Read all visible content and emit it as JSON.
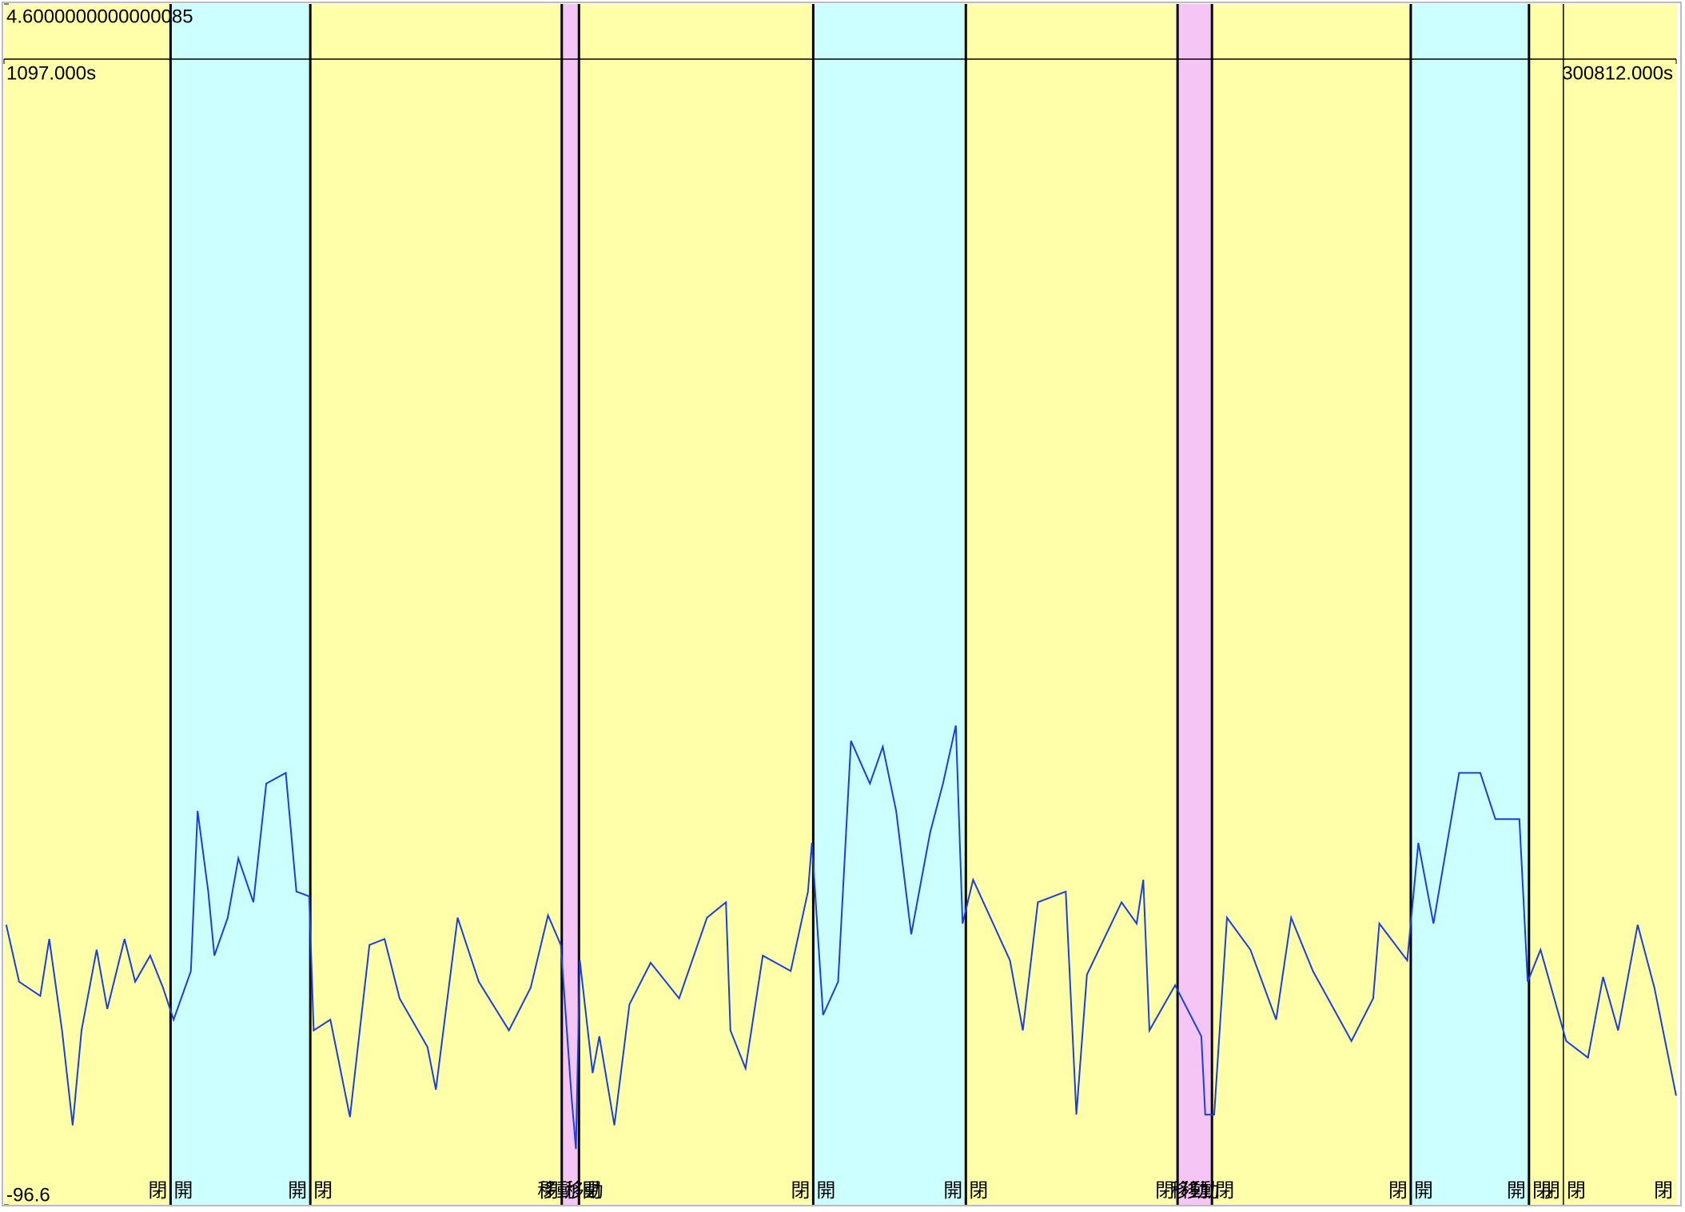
{
  "chart_data": {
    "type": "line",
    "xlim": [
      1097,
      300812
    ],
    "xticks": [
      {
        "value": 1097,
        "label": "1097.000s"
      },
      {
        "value": 300812,
        "label": "300812.000s"
      }
    ],
    "ylim": [
      -96.6,
      4.6000000000000085
    ],
    "yticks": [
      -96.6,
      4.6000000000000085
    ],
    "color": "#1a3fdc",
    "regions": [
      {
        "start": 1097,
        "end": 30953,
        "label": "閉",
        "color": "#ffffaa"
      },
      {
        "start": 30953,
        "end": 55994,
        "label": "開",
        "color": "#ccffff"
      },
      {
        "start": 55994,
        "end": 101067,
        "label": "閉",
        "color": "#ffffaa"
      },
      {
        "start": 101067,
        "end": 104149,
        "label": "移動",
        "color": "#f5c6f5"
      },
      {
        "start": 104149,
        "end": 146140,
        "label": "閉",
        "color": "#ffffaa"
      },
      {
        "start": 146140,
        "end": 173492,
        "label": "開",
        "color": "#ccffff"
      },
      {
        "start": 173492,
        "end": 211438,
        "label": "閉",
        "color": "#ffffaa"
      },
      {
        "start": 211438,
        "end": 217602,
        "label": "移動",
        "color": "#f5c6f5"
      },
      {
        "start": 217602,
        "end": 253237,
        "label": "閉",
        "color": "#ffffaa"
      },
      {
        "start": 253237,
        "end": 274425,
        "label": "開",
        "color": "#ccffff"
      },
      {
        "start": 274425,
        "end": 280589,
        "label": "閉",
        "color": "#ffffaa"
      },
      {
        "start": 280589,
        "end": 300812,
        "label": "閉",
        "color": "#ffffaa"
      }
    ],
    "x": [
      1500,
      3800,
      7600,
      9200,
      11500,
      13400,
      15000,
      17700,
      19600,
      22700,
      24600,
      27300,
      29600,
      31500,
      34600,
      35800,
      37700,
      38800,
      41200,
      43100,
      45800,
      48100,
      51600,
      53500,
      55800,
      56600,
      59600,
      63100,
      66600,
      69300,
      72000,
      77000,
      78500,
      82400,
      86200,
      91600,
      95500,
      98600,
      100900,
      102800,
      103600,
      104300,
      106600,
      107800,
      110500,
      113200,
      117000,
      122100,
      127100,
      130500,
      131300,
      134000,
      137100,
      142100,
      145200,
      145900,
      147900,
      150600,
      152900,
      156300,
      158600,
      161000,
      163700,
      167100,
      169400,
      171700,
      172900,
      174800,
      181400,
      183700,
      186400,
      191400,
      193300,
      195200,
      201400,
      204100,
      205300,
      206400,
      211000,
      215700,
      216400,
      218000,
      220300,
      224500,
      229100,
      231800,
      235700,
      242600,
      246500,
      247600,
      252600,
      254600,
      257300,
      261900,
      265700,
      268400,
      272700,
      274200,
      276500,
      281100,
      285000,
      287700,
      290400,
      293900,
      296900,
      300800
    ],
    "values": [
      -73.0,
      -77.8,
      -79.0,
      -74.2,
      -81.9,
      -89.9,
      -81.9,
      -75.1,
      -80.1,
      -74.2,
      -77.8,
      -75.6,
      -78.3,
      -81.0,
      -76.9,
      -63.4,
      -70.2,
      -75.6,
      -72.4,
      -67.4,
      -71.1,
      -61.1,
      -60.2,
      -70.2,
      -70.6,
      -81.9,
      -81.0,
      -89.2,
      -74.7,
      -74.2,
      -79.2,
      -83.3,
      -86.9,
      -72.4,
      -77.8,
      -81.9,
      -78.3,
      -72.2,
      -74.7,
      -87.4,
      -91.9,
      -76.0,
      -85.5,
      -82.4,
      -89.9,
      -79.7,
      -76.2,
      -79.2,
      -72.4,
      -71.1,
      -81.9,
      -85.1,
      -75.6,
      -76.9,
      -70.2,
      -66.1,
      -80.6,
      -77.8,
      -57.5,
      -61.1,
      -58.0,
      -63.4,
      -73.8,
      -65.2,
      -61.1,
      -56.2,
      -72.9,
      -69.2,
      -76.0,
      -81.9,
      -71.1,
      -70.2,
      -89.0,
      -77.2,
      -71.1,
      -72.9,
      -69.2,
      -81.9,
      -78.1,
      -82.4,
      -89.0,
      -89.0,
      -72.4,
      -75.1,
      -81.0,
      -72.4,
      -76.9,
      -82.8,
      -79.2,
      -72.9,
      -76.0,
      -66.1,
      -72.9,
      -60.2,
      -60.2,
      -64.1,
      -64.1,
      -77.8,
      -75.1,
      -82.8,
      -84.2,
      -77.4,
      -81.9,
      -73.0,
      -78.3,
      -87.4
    ]
  }
}
